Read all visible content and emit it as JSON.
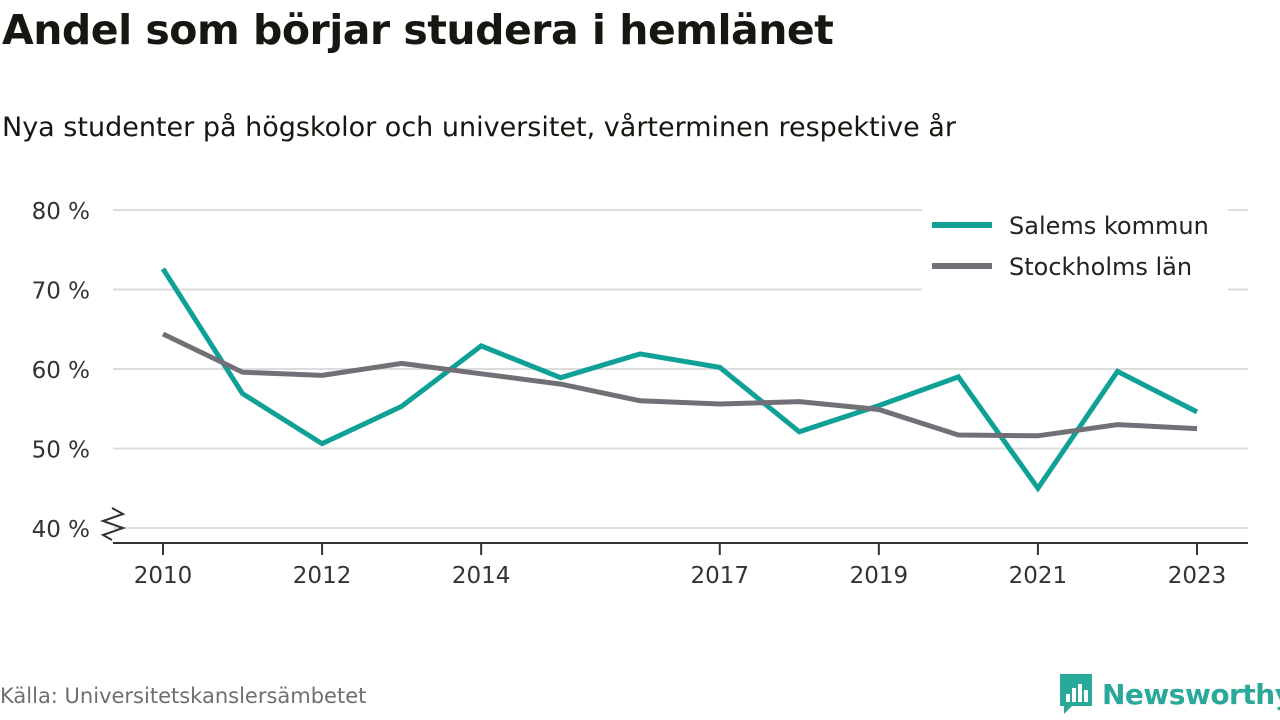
{
  "brand": {
    "name": "Newsworthy",
    "color": "#2aa89a"
  },
  "source": "Källa: Universitetskanslersämbetet",
  "chart_data": {
    "type": "line",
    "title": "Andel som börjar studera i hemlänet",
    "subtitle": "Nya studenter på högskolor och universitet, vårterminen respektive år",
    "x": [
      2010,
      2011,
      2012,
      2013,
      2014,
      2015,
      2016,
      2017,
      2018,
      2019,
      2020,
      2021,
      2022,
      2023
    ],
    "x_tick_labels": [
      "2010",
      "2012",
      "2014",
      "2017",
      "2019",
      "2021",
      "2023"
    ],
    "y_tick_labels": [
      "80 %",
      "70 %",
      "60 %",
      "50 %",
      "40 %"
    ],
    "y_ticks": [
      80,
      70,
      60,
      50,
      40
    ],
    "ylim": [
      40,
      80
    ],
    "y_axis_break": true,
    "grid": true,
    "legend_position": "top-right",
    "series": [
      {
        "name": "Salems kommun",
        "color": "#0fa096",
        "values": [
          72.6,
          56.9,
          50.6,
          55.3,
          62.9,
          58.9,
          61.9,
          60.2,
          52.1,
          55.4,
          59.0,
          45.0,
          59.7,
          54.6
        ]
      },
      {
        "name": "Stockholms län",
        "color": "#727076",
        "values": [
          64.4,
          59.6,
          59.2,
          60.7,
          59.4,
          58.1,
          56.0,
          55.6,
          55.9,
          54.9,
          51.7,
          51.6,
          53.0,
          52.5
        ]
      }
    ]
  }
}
